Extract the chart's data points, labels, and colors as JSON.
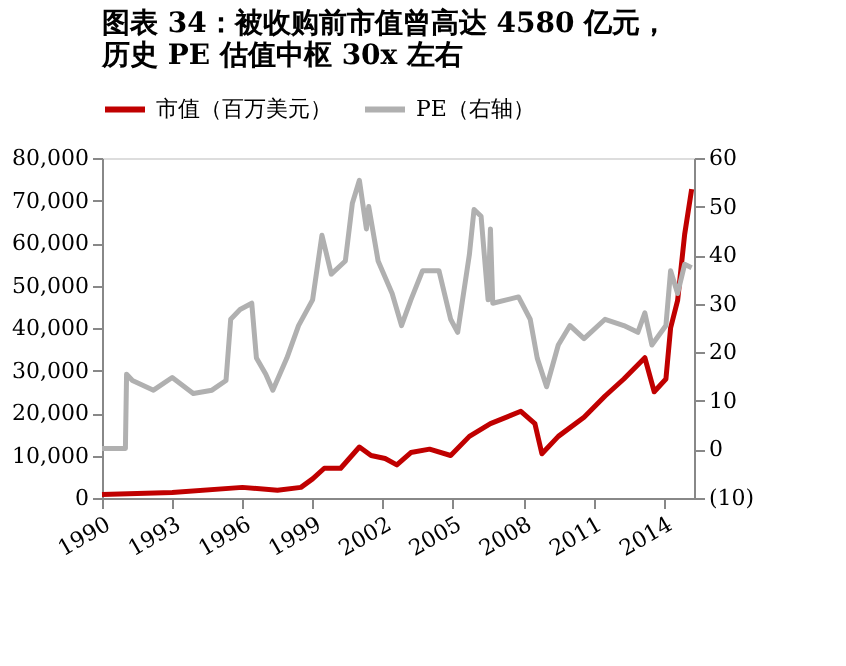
{
  "chart_data": {
    "type": "line",
    "title": "图表 34：被收购前市值曾高达 4580 亿元，历史 PE 估值中枢 30x 左右",
    "xlim": [
      1990,
      2015.3
    ],
    "xticks": [
      1990,
      1993,
      1996,
      1999,
      2002,
      2005,
      2008,
      2011,
      2014
    ],
    "ylim": [
      0,
      80000
    ],
    "yticks": [
      0,
      {
        "value": 10000,
        "label": "10,000"
      },
      {
        "value": 20000,
        "label": "20,000"
      },
      {
        "value": 30000,
        "label": "30,000"
      },
      {
        "value": 40000,
        "label": "40,000"
      },
      {
        "value": 50000,
        "label": "50,000"
      },
      {
        "value": 60000,
        "label": "60,000"
      },
      {
        "value": 70000,
        "label": "70,000"
      },
      {
        "value": 80000,
        "label": "80,000"
      }
    ],
    "y2lim": [
      -10,
      60
    ],
    "y2ticks": [
      {
        "value": -10,
        "label": "(10)"
      },
      0,
      10,
      20,
      30,
      40,
      50,
      60
    ],
    "legend": "top",
    "grid": false,
    "line_style": "solid",
    "marker": "none",
    "series": [
      {
        "name": "市值（百万美元）",
        "color": "#c00000",
        "x": [
          1990,
          1993,
          1996,
          1997.5,
          1998.5,
          1999,
          1999.5,
          2000.2,
          2001,
          2001.5,
          2002.1,
          2002.6,
          2003.2,
          2004.0,
          2004.9,
          2005.7,
          2006.6,
          2007.9,
          2008.5,
          2008.8,
          2009.5,
          2010.6,
          2011.5,
          2012.3,
          2013.2,
          2013.6,
          2014.1,
          2014.3,
          2014.6,
          2014.9,
          2015.2
        ],
        "values": [
          800,
          1300,
          2500,
          1800,
          2500,
          4500,
          7000,
          7000,
          12000,
          10000,
          9300,
          7800,
          10700,
          11500,
          10000,
          14500,
          17500,
          20400,
          17500,
          10400,
          14500,
          19000,
          24000,
          28000,
          33000,
          25000,
          28000,
          40000,
          46500,
          62000,
          72700
        ]
      },
      {
        "name": "PE（右轴）",
        "color": "#b0b0b0",
        "axis": "y2",
        "x": [
          1990,
          1991.0,
          1991.05,
          1991.3,
          1992.2,
          1993.0,
          1993.9,
          1994.7,
          1995.3,
          1995.5,
          1995.9,
          1996.4,
          1996.6,
          1997.0,
          1997.3,
          1997.9,
          1998.4,
          1999.0,
          1999.4,
          1999.8,
          2000.4,
          2000.7,
          2001.0,
          2001.3,
          2001.4,
          2001.8,
          2002.4,
          2002.8,
          2003.2,
          2003.7,
          2004.4,
          2004.9,
          2005.2,
          2005.7,
          2005.9,
          2006.2,
          2006.5,
          2006.6,
          2006.7,
          2007.8,
          2008.3,
          2008.6,
          2009.0,
          2009.5,
          2010.0,
          2010.6,
          2011.5,
          2012.3,
          2012.9,
          2013.2,
          2013.5,
          2014.1,
          2014.3,
          2014.6,
          2014.9,
          2015.2
        ],
        "values": [
          0.2,
          0.2,
          15.5,
          14.2,
          12.2,
          14.8,
          11.5,
          12.2,
          14.2,
          26.8,
          28.8,
          30.1,
          18.8,
          15.5,
          12.2,
          18.8,
          25.5,
          30.8,
          44.1,
          36.1,
          38.8,
          50.7,
          55.4,
          45.4,
          50.0,
          38.8,
          32.1,
          25.5,
          30.8,
          36.8,
          36.8,
          26.8,
          24.1,
          40.1,
          49.4,
          48.0,
          30.8,
          45.4,
          30.1,
          31.4,
          26.8,
          18.8,
          12.9,
          21.5,
          25.5,
          22.8,
          26.8,
          25.5,
          24.1,
          28.1,
          21.5,
          25.5,
          36.8,
          32.1,
          38.1,
          37.4
        ]
      }
    ]
  }
}
